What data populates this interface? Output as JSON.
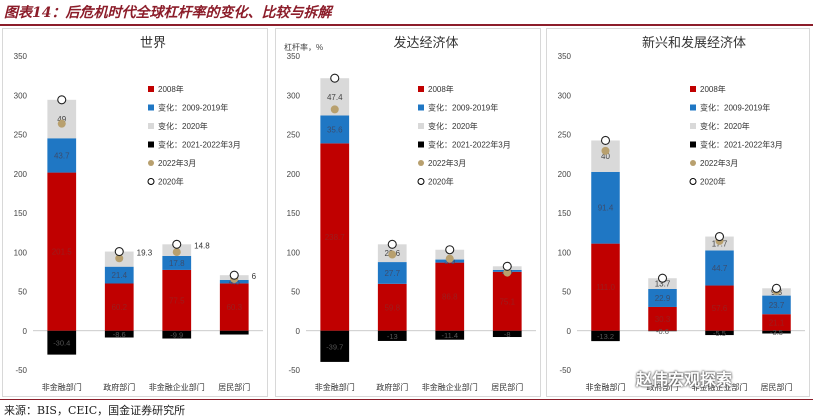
{
  "figure": {
    "title": "图表14：后危机时代全球杠杆率的变化、比较与拆解",
    "source": "来源：BIS，CEIC，国金证券研究所",
    "watermark": "赵伟宏观探索"
  },
  "colors": {
    "base_2008": "#c00000",
    "change_2009_2019": "#1f77c4",
    "change_2020": "#d9d9d9",
    "change_2021_2022": "#000000",
    "marker_2022": "#b8a06e",
    "marker_2020": "#ffffff"
  },
  "legend": [
    {
      "label": "2008年",
      "type": "square",
      "color": "#c00000"
    },
    {
      "label": "变化：2009-2019年",
      "type": "square",
      "color": "#1f77c4"
    },
    {
      "label": "变化：2020年",
      "type": "square",
      "color": "#d9d9d9"
    },
    {
      "label": "变化：2021-2022年3月",
      "type": "square",
      "color": "#000000"
    },
    {
      "label": "2022年3月",
      "type": "dot",
      "color": "#b8a06e"
    },
    {
      "label": "2020年",
      "type": "circle",
      "color": "#000000"
    }
  ],
  "chart_data": [
    {
      "type": "bar",
      "title": "世界",
      "ylabel": "",
      "ylim": [
        -50,
        350
      ],
      "yticks": [
        -50,
        0,
        50,
        100,
        150,
        200,
        250,
        300,
        350
      ],
      "categories": [
        "非金融部门",
        "政府部门",
        "非金融企业部门",
        "居民部门"
      ],
      "series": [
        {
          "name": "2008年",
          "values": [
            201.5,
            60.2,
            77.5,
            60.3
          ],
          "labels": [
            "201.5",
            "60.2",
            "77.5",
            "60.3"
          ]
        },
        {
          "name": "变化：2009-2019年",
          "values": [
            43.7,
            21.4,
            17.8,
            4.5
          ],
          "labels": [
            "43.7",
            "21.4",
            "17.8",
            "4.5"
          ]
        },
        {
          "name": "变化：2020年",
          "values": [
            49,
            19.3,
            14.8,
            6
          ],
          "labels": [
            "49",
            "19.3",
            "14.8",
            "6"
          ]
        },
        {
          "name": "变化：2021-2022年3月",
          "values": [
            -30.4,
            -8.6,
            -9.9,
            -4.8
          ],
          "labels": [
            "-30.4",
            "-8.6",
            "-9.9",
            ""
          ]
        },
        {
          "name": "2022年3月",
          "values": [
            263.8,
            92.3,
            100.2,
            66
          ]
        },
        {
          "name": "2020年",
          "values": [
            294.2,
            100.9,
            110.1,
            70.8
          ]
        }
      ],
      "outside_labels": [
        false,
        true,
        true,
        true
      ]
    },
    {
      "type": "bar",
      "title": "发达经济体",
      "ylabel": "杠杆率，%",
      "ylim": [
        -50,
        350
      ],
      "yticks": [
        -50,
        0,
        50,
        100,
        150,
        200,
        250,
        300,
        350
      ],
      "categories": [
        "非金融部门",
        "政府部门",
        "非金融企业部门",
        "居民部门"
      ],
      "series": [
        {
          "name": "2008年",
          "values": [
            238.7,
            59.8,
            86.8,
            75.1
          ],
          "labels": [
            "238.7",
            "59.8",
            "86.8",
            "75.1"
          ]
        },
        {
          "name": "变化：2009-2019年",
          "values": [
            35.6,
            27.7,
            3.9,
            2.4
          ],
          "labels": [
            "35.6",
            "27.7",
            "3.9",
            "2.4"
          ]
        },
        {
          "name": "变化：2020年",
          "values": [
            47.4,
            22.6,
            12.5,
            4.6
          ],
          "labels": [
            "47.4",
            "22.6",
            "",
            ""
          ]
        },
        {
          "name": "变化：2021-2022年3月",
          "values": [
            -39.7,
            -13,
            -11.4,
            -8
          ],
          "labels": [
            "-39.7",
            "-13",
            "-11.4",
            "-8"
          ]
        },
        {
          "name": "2022年3月",
          "values": [
            282,
            97.1,
            91.8,
            74.1
          ]
        },
        {
          "name": "2020年",
          "values": [
            321.7,
            110.1,
            103.2,
            82.1
          ]
        }
      ],
      "outside_labels": [
        false,
        false,
        false,
        false
      ]
    },
    {
      "type": "bar",
      "title": "新兴和发展经济体",
      "ylabel": "",
      "ylim": [
        -50,
        350
      ],
      "yticks": [
        -50,
        0,
        50,
        100,
        150,
        200,
        250,
        300,
        350
      ],
      "categories": [
        "非金融部门",
        "政府部门",
        "非金融企业部门",
        "居民部门"
      ],
      "series": [
        {
          "name": "2008年",
          "values": [
            111.0,
            30.3,
            57.6,
            21.1
          ],
          "labels": [
            "111.0",
            "30.3",
            "57.6",
            "21.1"
          ]
        },
        {
          "name": "变化：2009-2019年",
          "values": [
            91.4,
            22.9,
            44.7,
            23.7
          ],
          "labels": [
            "91.4",
            "22.9",
            "44.7",
            "23.7"
          ]
        },
        {
          "name": "变化：2020年",
          "values": [
            40,
            13.7,
            17.7,
            9.3
          ],
          "labels": [
            "40",
            "13.7",
            "17.7",
            "9.3"
          ]
        },
        {
          "name": "变化：2021-2022年3月",
          "values": [
            -13.2,
            -0.6,
            -5.5,
            -3.5
          ],
          "labels": [
            "-13.2",
            "-0.6",
            "-5.5",
            "-3.5"
          ]
        },
        {
          "name": "2022年3月",
          "values": [
            229.2,
            66.3,
            114.5,
            50.6
          ]
        },
        {
          "name": "2020年",
          "values": [
            242.4,
            66.9,
            120.0,
            54.1
          ]
        }
      ],
      "outside_labels": [
        false,
        false,
        false,
        false
      ]
    }
  ]
}
